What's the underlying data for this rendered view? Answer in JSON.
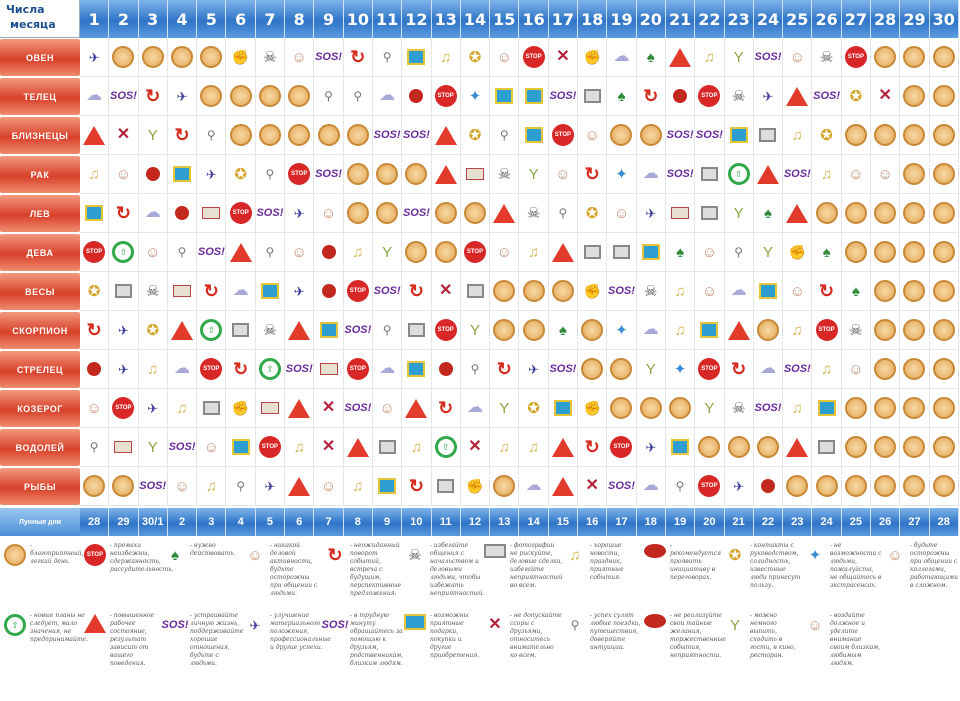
{
  "header": {
    "corner_line1": "Числа",
    "corner_line2": "месяца"
  },
  "days": [
    "1",
    "2",
    "3",
    "4",
    "5",
    "6",
    "7",
    "8",
    "9",
    "10",
    "11",
    "12",
    "13",
    "14",
    "15",
    "16",
    "17",
    "18",
    "19",
    "20",
    "21",
    "22",
    "23",
    "24",
    "25",
    "26",
    "27",
    "28",
    "29",
    "30"
  ],
  "signs": [
    "ОВЕН",
    "ТЕЛЕЦ",
    "БЛИЗНЕЦЫ",
    "РАК",
    "ЛЕВ",
    "ДЕВА",
    "ВЕСЫ",
    "СКОРПИОН",
    "СТРЕЛЕЦ",
    "КОЗЕРОГ",
    "ВОДОЛЕЙ",
    "РЫБЫ"
  ],
  "lunar": {
    "label": "Лунные дни",
    "values": [
      "28",
      "29",
      "30/1",
      "2",
      "3",
      "4",
      "5",
      "6",
      "7",
      "8",
      "9",
      "10",
      "11",
      "12",
      "13",
      "14",
      "15",
      "16",
      "17",
      "18",
      "19",
      "20",
      "21",
      "22",
      "23",
      "24",
      "25",
      "26",
      "27",
      "28"
    ]
  },
  "icon_types": [
    "coin",
    "stop",
    "sos",
    "warn",
    "cross",
    "arrow",
    "gift",
    "bike",
    "bell",
    "glass",
    "person",
    "skull",
    "green",
    "bomb",
    "cake",
    "plane",
    "cam",
    "hat",
    "medal",
    "cloud",
    "fish",
    "fist"
  ],
  "rows": [
    [
      "plane",
      "coin",
      "coin",
      "coin",
      "coin",
      "fist",
      "skull",
      "person",
      "sos",
      "arrow",
      "bike",
      "gift",
      "bell",
      "medal",
      "person",
      "stop",
      "cross",
      "fist",
      "cloud",
      "hat",
      "warn",
      "bell",
      "glass",
      "sos",
      "person",
      "skull",
      "stop",
      "coin",
      "coin",
      "coin"
    ],
    [
      "cloud",
      "sos",
      "arrow",
      "plane",
      "coin",
      "coin",
      "coin",
      "coin",
      "bike",
      "bike",
      "cloud",
      "bomb",
      "stop",
      "fish",
      "gift",
      "gift",
      "sos",
      "cam",
      "hat",
      "arrow",
      "bomb",
      "stop",
      "skull",
      "plane",
      "warn",
      "sos",
      "medal",
      "cross",
      "coin",
      "coin"
    ],
    [
      "warn",
      "cross",
      "glass",
      "arrow",
      "bike",
      "coin",
      "coin",
      "coin",
      "coin",
      "coin",
      "sos",
      "sos",
      "warn",
      "medal",
      "bike",
      "gift",
      "stop",
      "person",
      "coin",
      "coin",
      "sos",
      "sos",
      "gift",
      "cam",
      "bell",
      "medal",
      "coin",
      "coin",
      "coin",
      "coin"
    ],
    [
      "bell",
      "person",
      "bomb",
      "gift",
      "plane",
      "medal",
      "bike",
      "stop",
      "sos",
      "coin",
      "coin",
      "coin",
      "warn",
      "cake",
      "skull",
      "glass",
      "person",
      "arrow",
      "fish",
      "cloud",
      "sos",
      "cam",
      "green",
      "warn",
      "sos",
      "bell",
      "person",
      "person",
      "coin",
      "coin"
    ],
    [
      "gift",
      "arrow",
      "cloud",
      "bomb",
      "cake",
      "stop",
      "sos",
      "plane",
      "person",
      "coin",
      "coin",
      "sos",
      "coin",
      "coin",
      "warn",
      "skull",
      "bike",
      "medal",
      "person",
      "plane",
      "cake",
      "cam",
      "glass",
      "hat",
      "warn",
      "coin",
      "coin",
      "coin",
      "coin",
      "coin"
    ],
    [
      "stop",
      "green",
      "person",
      "bike",
      "sos",
      "warn",
      "bike",
      "person",
      "bomb",
      "bell",
      "glass",
      "coin",
      "coin",
      "stop",
      "person",
      "bell",
      "warn",
      "cam",
      "cam",
      "gift",
      "hat",
      "person",
      "bike",
      "glass",
      "fist",
      "hat",
      "coin",
      "coin",
      "coin",
      "coin"
    ],
    [
      "medal",
      "cam",
      "skull",
      "cake",
      "arrow",
      "cloud",
      "gift",
      "plane",
      "bomb",
      "stop",
      "sos",
      "arrow",
      "cross",
      "cam",
      "coin",
      "coin",
      "coin",
      "fist",
      "sos",
      "skull",
      "bell",
      "person",
      "cloud",
      "gift",
      "person",
      "arrow",
      "hat",
      "coin",
      "coin",
      "coin"
    ],
    [
      "arrow",
      "plane",
      "medal",
      "warn",
      "green",
      "cam",
      "skull",
      "warn",
      "gift",
      "sos",
      "bike",
      "cam",
      "stop",
      "glass",
      "coin",
      "coin",
      "hat",
      "coin",
      "fish",
      "cloud",
      "bell",
      "gift",
      "warn",
      "coin",
      "bell",
      "stop",
      "skull",
      "coin",
      "coin",
      "coin"
    ],
    [
      "bomb",
      "plane",
      "bell",
      "cloud",
      "stop",
      "arrow",
      "green",
      "sos",
      "cake",
      "stop",
      "cloud",
      "gift",
      "bomb",
      "bike",
      "arrow",
      "plane",
      "sos",
      "coin",
      "coin",
      "glass",
      "fish",
      "stop",
      "arrow",
      "cloud",
      "sos",
      "bell",
      "person",
      "coin",
      "coin",
      "coin"
    ],
    [
      "person",
      "stop",
      "plane",
      "bell",
      "cam",
      "fist",
      "cake",
      "warn",
      "cross",
      "sos",
      "person",
      "warn",
      "arrow",
      "cloud",
      "glass",
      "medal",
      "gift",
      "fist",
      "coin",
      "coin",
      "coin",
      "glass",
      "skull",
      "sos",
      "bell",
      "gift",
      "coin",
      "coin",
      "coin",
      "coin"
    ],
    [
      "bike",
      "cake",
      "glass",
      "sos",
      "person",
      "gift",
      "stop",
      "bell",
      "cross",
      "warn",
      "cam",
      "bell",
      "green",
      "cross",
      "bell",
      "bell",
      "warn",
      "arrow",
      "stop",
      "plane",
      "gift",
      "coin",
      "coin",
      "coin",
      "warn",
      "cam",
      "coin",
      "coin",
      "coin",
      "coin"
    ],
    [
      "coin",
      "coin",
      "sos",
      "person",
      "bell",
      "bike",
      "plane",
      "warn",
      "person",
      "bell",
      "gift",
      "arrow",
      "cam",
      "fist",
      "coin",
      "cloud",
      "warn",
      "cross",
      "sos",
      "cloud",
      "bike",
      "stop",
      "plane",
      "bomb",
      "coin",
      "coin",
      "coin",
      "coin",
      "coin",
      "coin"
    ]
  ],
  "legend": [
    {
      "icon": "coin",
      "text": "- благоприятный, легкий день."
    },
    {
      "icon": "stop",
      "text": "- промахи неизбежны, сдержанность, рассудительность."
    },
    {
      "icon": "hat",
      "text": "- нужно действовать."
    },
    {
      "icon": "person",
      "text": "- никакой деловой активности, будьте осторожны при общении с людьми."
    },
    {
      "icon": "arrow",
      "text": "- неожиданный поворот событий, встреча с будущим, перспективные предложения."
    },
    {
      "icon": "skull",
      "text": "- избегайте общения с начальством и деловыми людьми, чтобы избежать неприятностей."
    },
    {
      "icon": "cam",
      "text": "- фотографии не рискуйте, деловые сделки, избегайте неприятностей во всем."
    },
    {
      "icon": "bell",
      "text": "- хорошие новости, праздник, приятные события."
    },
    {
      "icon": "bomb",
      "text": "- рекомендуется проявить инициативу в переговорах."
    },
    {
      "icon": "medal",
      "text": "- контакты с руководством, солидность, известные люди принесут пользу."
    },
    {
      "icon": "fish",
      "text": "- не возможности с людьми, пожалуйста, не общайтесь в экстрасенсах."
    },
    {
      "icon": "person",
      "text": "- будьте осторожны при общении с коллегами, работающими в сложном."
    },
    {
      "icon": "green",
      "text": "- новые планы не следует, мало значения, не предпринимайте."
    },
    {
      "icon": "warn",
      "text": "- повышенное рабочее состояние, результат зависит от вашего поведения."
    },
    {
      "icon": "sos",
      "text": "- устраивайте личную жизнь, поддерживайте хорошие отношения, будьте с людьми."
    },
    {
      "icon": "plane",
      "text": "- улучшение материального положения, профессиональные и другие успехи."
    },
    {
      "icon": "sos",
      "text": "- в трудную минуту обращайтесь за помощью к друзьям, родственникам, близким людям."
    },
    {
      "icon": "gift",
      "text": "- возможны приятные подарки, покупки и другие приобретения."
    },
    {
      "icon": "cross",
      "text": "- не допускайте ссоры с друзьями, относитесь внимательно ко всем."
    },
    {
      "icon": "bike",
      "text": "- успех сулят любые поездки, путешествия, доверяйте интуиции."
    },
    {
      "icon": "bomb",
      "text": "- не реализуйте свои тайные желания, торжественные события, неприятности."
    },
    {
      "icon": "glass",
      "text": "- можно немного выпить, сходить в гости, в кино, ресторан."
    },
    {
      "icon": "person",
      "text": "- воздайте должное и уделите внимание своим близким, любимым людям."
    }
  ]
}
